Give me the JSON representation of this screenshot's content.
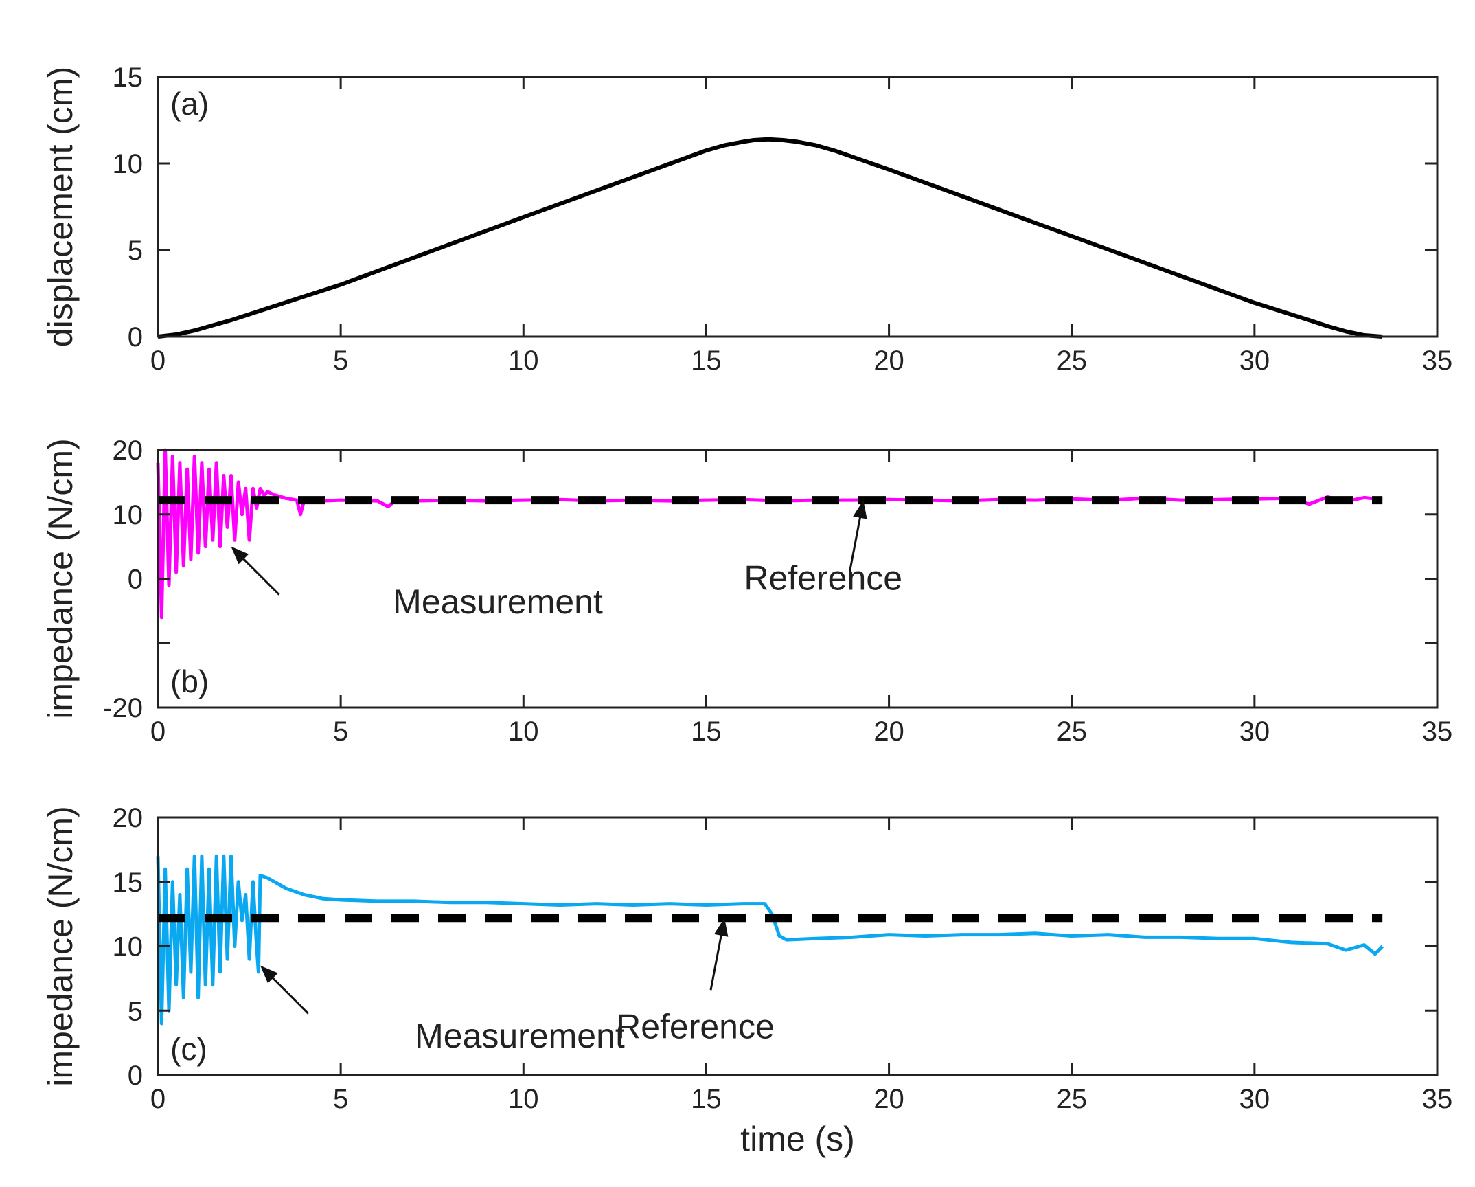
{
  "chart_data": [
    {
      "type": "line",
      "panel_label": "(a)",
      "xlabel": "",
      "ylabel": "displacement (cm)",
      "xlim": [
        0,
        35
      ],
      "ylim": [
        0,
        15
      ],
      "xticks": [
        0,
        5,
        10,
        15,
        20,
        25,
        30,
        35
      ],
      "yticks": [
        0,
        5,
        10,
        15
      ],
      "xtick_labels": [
        "0",
        "5",
        "10",
        "15",
        "20",
        "25",
        "30",
        "35"
      ],
      "ytick_labels": [
        "0",
        "5",
        "10",
        "15"
      ],
      "series": [
        {
          "name": "displacement",
          "color": "#000000",
          "x": [
            0,
            0.5,
            1,
            1.5,
            2,
            5,
            10,
            15,
            15.5,
            16,
            16.3,
            16.7,
            17.1,
            17.5,
            18,
            18.5,
            20,
            25,
            30,
            31.5,
            32,
            32.5,
            33,
            33.5
          ],
          "y": [
            0,
            0.12,
            0.35,
            0.65,
            0.95,
            3.0,
            6.9,
            10.75,
            11.05,
            11.25,
            11.35,
            11.4,
            11.35,
            11.25,
            11.05,
            10.75,
            9.65,
            5.8,
            1.95,
            0.95,
            0.6,
            0.3,
            0.08,
            0
          ]
        }
      ]
    },
    {
      "type": "line",
      "panel_label": "(b)",
      "xlabel": "",
      "ylabel": "impedance (N/cm)",
      "xlim": [
        0,
        35
      ],
      "ylim": [
        -20,
        20
      ],
      "xticks": [
        0,
        5,
        10,
        15,
        20,
        25,
        30,
        35
      ],
      "yticks": [
        -20,
        -10,
        0,
        10,
        20
      ],
      "xtick_labels": [
        "0",
        "5",
        "10",
        "15",
        "20",
        "25",
        "30",
        "35"
      ],
      "ytick_labels": [
        "-20",
        "",
        "0",
        "10",
        "20"
      ],
      "series": [
        {
          "name": "Measurement",
          "color": "#ff00ff",
          "x": [
            0,
            0.1,
            0.2,
            0.3,
            0.4,
            0.5,
            0.6,
            0.7,
            0.8,
            0.9,
            1.0,
            1.1,
            1.2,
            1.3,
            1.4,
            1.5,
            1.6,
            1.7,
            1.8,
            1.9,
            2.0,
            2.1,
            2.2,
            2.3,
            2.4,
            2.5,
            2.6,
            2.7,
            2.8,
            2.9,
            3.0,
            3.2,
            3.5,
            3.8,
            3.9,
            4.0,
            4.5,
            5,
            6,
            6.3,
            6.5,
            7,
            8,
            9,
            10,
            11,
            12,
            13,
            14,
            15,
            16,
            17,
            18,
            19,
            20,
            21,
            22,
            23,
            24,
            25,
            26,
            27,
            28,
            29,
            30,
            31,
            31.5,
            32,
            32.5,
            33,
            33.5
          ],
          "y": [
            18,
            -6,
            20,
            -1,
            19,
            1,
            18,
            2,
            17,
            3,
            19,
            4,
            18,
            5,
            17,
            6,
            18,
            5,
            16,
            8,
            16,
            6,
            15,
            10,
            14,
            6,
            14,
            11,
            14,
            13,
            13.5,
            13,
            12.5,
            12.2,
            10,
            12.2,
            12.1,
            12.2,
            12.1,
            11.2,
            12.2,
            12.1,
            12.2,
            12.1,
            12.2,
            12.3,
            12.1,
            12.2,
            12.1,
            12.2,
            12.3,
            12.1,
            12.2,
            12.2,
            12.3,
            12.2,
            12.1,
            12.3,
            12.2,
            12.4,
            12.2,
            12.5,
            12.2,
            12.3,
            12.4,
            12.5,
            11.6,
            12.7,
            12.0,
            12.6,
            12.3
          ]
        },
        {
          "name": "Reference",
          "color": "#000000",
          "dashed": true,
          "x": [
            0,
            33.5
          ],
          "y": [
            12.2,
            12.2
          ]
        }
      ],
      "annotations": [
        {
          "text": "Measurement",
          "arrow_to": [
            2.0,
            5.0
          ],
          "text_at": [
            9.3,
            -3.7
          ]
        },
        {
          "text": "Reference",
          "arrow_to": [
            19.3,
            12.2
          ],
          "text_at": [
            18.2,
            0.0
          ]
        }
      ]
    },
    {
      "type": "line",
      "panel_label": "(c)",
      "xlabel": "time (s)",
      "ylabel": "impedance (N/cm)",
      "xlim": [
        0,
        35
      ],
      "ylim": [
        0,
        20
      ],
      "xticks": [
        0,
        5,
        10,
        15,
        20,
        25,
        30,
        35
      ],
      "yticks": [
        0,
        5,
        10,
        15,
        20
      ],
      "xtick_labels": [
        "0",
        "5",
        "10",
        "15",
        "20",
        "25",
        "30",
        "35"
      ],
      "ytick_labels": [
        "0",
        "5",
        "10",
        "15",
        "20"
      ],
      "series": [
        {
          "name": "Measurement",
          "color": "#0aa8f0",
          "x": [
            0,
            0.1,
            0.2,
            0.3,
            0.4,
            0.5,
            0.6,
            0.7,
            0.8,
            0.9,
            1.0,
            1.1,
            1.2,
            1.3,
            1.4,
            1.5,
            1.6,
            1.7,
            1.8,
            1.9,
            2.0,
            2.1,
            2.2,
            2.3,
            2.4,
            2.5,
            2.6,
            2.7,
            2.75,
            2.8,
            3,
            3.5,
            4,
            4.5,
            5,
            6,
            7,
            8,
            9,
            10,
            11,
            12,
            13,
            14,
            15,
            16,
            16.6,
            16.8,
            17,
            17.2,
            18,
            19,
            20,
            21,
            22,
            23,
            24,
            25,
            26,
            27,
            28,
            29,
            30,
            31,
            32,
            32.5,
            33,
            33.3,
            33.5
          ],
          "y": [
            17,
            4,
            16,
            5,
            15,
            7,
            14,
            6,
            16,
            8,
            17,
            6,
            17,
            7,
            16,
            7,
            17,
            8,
            17,
            9,
            17,
            10,
            15,
            12,
            14,
            9,
            15,
            10,
            8,
            15.5,
            15.3,
            14.5,
            14.0,
            13.7,
            13.6,
            13.5,
            13.5,
            13.4,
            13.4,
            13.3,
            13.2,
            13.3,
            13.2,
            13.3,
            13.2,
            13.3,
            13.3,
            12.5,
            10.8,
            10.5,
            10.6,
            10.7,
            10.9,
            10.8,
            10.9,
            10.9,
            11.0,
            10.8,
            10.9,
            10.7,
            10.7,
            10.6,
            10.6,
            10.3,
            10.2,
            9.7,
            10.1,
            9.4,
            10.0
          ]
        },
        {
          "name": "Reference",
          "color": "#000000",
          "dashed": true,
          "x": [
            0,
            33.5
          ],
          "y": [
            12.2,
            12.2
          ]
        }
      ],
      "annotations": [
        {
          "text": "Measurement",
          "arrow_to": [
            2.8,
            8.5
          ],
          "text_at": [
            9.9,
            3.0
          ]
        },
        {
          "text": "Reference",
          "arrow_to": [
            15.5,
            12.2
          ],
          "text_at": [
            14.7,
            3.7
          ]
        }
      ]
    }
  ]
}
